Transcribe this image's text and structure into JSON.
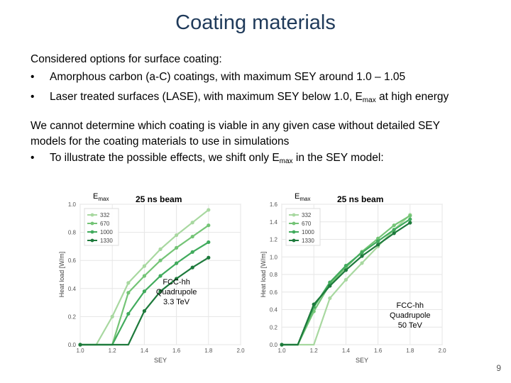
{
  "slide": {
    "title": "Coating materials",
    "intro": "Considered options for surface coating:",
    "bullets": [
      {
        "symbol": "•",
        "text": "Amorphous carbon (a-C) coatings, with maximum SEY around 1.0 – 1.05"
      },
      {
        "symbol": "•",
        "text_before": "Laser treated surfaces (LASE), with maximum SEY below 1.0, E",
        "sub": "max",
        "text_after": " at high energy"
      }
    ],
    "para_line1": "We cannot determine which coating is viable in any given case without detailed SEY",
    "para_line2": "models for the coating materials to use in simulations",
    "bullet3": {
      "symbol": "•",
      "text_before": "To illustrate the possible effects, we shift only E",
      "sub": "max",
      "text_after": " in the SEY model:"
    },
    "page_number": "9"
  },
  "chart_data": [
    {
      "type": "line",
      "emax_label": "E",
      "emax_sub": "max",
      "beam_label": "25 ns beam",
      "annotation": [
        "FCC-hh",
        "Quadrupole",
        "3.3 TeV"
      ],
      "xlabel": "SEY",
      "ylabel": "Heat load [W/m]",
      "xlim": [
        1.0,
        2.0
      ],
      "ylim": [
        0.0,
        1.0
      ],
      "xticks": [
        "1.0",
        "1.2",
        "1.4",
        "1.6",
        "1.8",
        "2.0"
      ],
      "yticks": [
        "0.0",
        "0.2",
        "0.4",
        "0.6",
        "0.8",
        "1.0"
      ],
      "grid": true,
      "legend_position": "top-left",
      "series": [
        {
          "name": "332",
          "color": "#a8d8a0",
          "x": [
            1.0,
            1.1,
            1.2,
            1.3,
            1.4,
            1.5,
            1.6,
            1.7,
            1.8
          ],
          "y": [
            0,
            0,
            0.2,
            0.44,
            0.56,
            0.68,
            0.78,
            0.87,
            0.96
          ]
        },
        {
          "name": "670",
          "color": "#74c476",
          "x": [
            1.0,
            1.1,
            1.2,
            1.3,
            1.4,
            1.5,
            1.6,
            1.7,
            1.8
          ],
          "y": [
            0,
            0,
            0,
            0.37,
            0.49,
            0.6,
            0.69,
            0.77,
            0.85
          ]
        },
        {
          "name": "1000",
          "color": "#41ab5d",
          "x": [
            1.0,
            1.1,
            1.2,
            1.3,
            1.4,
            1.5,
            1.6,
            1.7,
            1.8
          ],
          "y": [
            0,
            0,
            0,
            0.22,
            0.38,
            0.49,
            0.58,
            0.66,
            0.73
          ]
        },
        {
          "name": "1330",
          "color": "#1e7a3c",
          "x": [
            1.0,
            1.1,
            1.2,
            1.3,
            1.4,
            1.5,
            1.6,
            1.7,
            1.8
          ],
          "y": [
            0,
            0,
            0,
            0,
            0.24,
            0.38,
            0.47,
            0.55,
            0.62
          ]
        }
      ]
    },
    {
      "type": "line",
      "emax_label": "E",
      "emax_sub": "max",
      "beam_label": "25 ns beam",
      "annotation": [
        "FCC-hh",
        "Quadrupole",
        "50 TeV"
      ],
      "xlabel": "SEY",
      "ylabel": "Heat load [W/m]",
      "xlim": [
        1.0,
        2.0
      ],
      "ylim": [
        0.0,
        1.6
      ],
      "xticks": [
        "1.0",
        "1.2",
        "1.4",
        "1.6",
        "1.8",
        "2.0"
      ],
      "yticks": [
        "0.0",
        "0.2",
        "0.4",
        "0.6",
        "0.8",
        "1.0",
        "1.2",
        "1.4",
        "1.6"
      ],
      "grid": true,
      "legend_position": "top-left",
      "series": [
        {
          "name": "332",
          "color": "#a8d8a0",
          "x": [
            1.0,
            1.1,
            1.2,
            1.3,
            1.4,
            1.5,
            1.6,
            1.7,
            1.8
          ],
          "y": [
            0,
            0,
            0,
            0.53,
            0.74,
            0.93,
            1.12,
            1.31,
            1.48
          ]
        },
        {
          "name": "670",
          "color": "#74c476",
          "x": [
            1.0,
            1.1,
            1.2,
            1.3,
            1.4,
            1.5,
            1.6,
            1.7,
            1.8
          ],
          "y": [
            0,
            0,
            0.38,
            0.69,
            0.88,
            1.06,
            1.21,
            1.36,
            1.47
          ]
        },
        {
          "name": "1000",
          "color": "#41ab5d",
          "x": [
            1.0,
            1.1,
            1.2,
            1.3,
            1.4,
            1.5,
            1.6,
            1.7,
            1.8
          ],
          "y": [
            0,
            0,
            0.43,
            0.71,
            0.9,
            1.05,
            1.18,
            1.31,
            1.43
          ]
        },
        {
          "name": "1330",
          "color": "#1e7a3c",
          "x": [
            1.0,
            1.1,
            1.2,
            1.3,
            1.4,
            1.5,
            1.6,
            1.7,
            1.8
          ],
          "y": [
            0,
            0,
            0.46,
            0.67,
            0.85,
            1.01,
            1.14,
            1.27,
            1.39
          ]
        }
      ]
    }
  ]
}
